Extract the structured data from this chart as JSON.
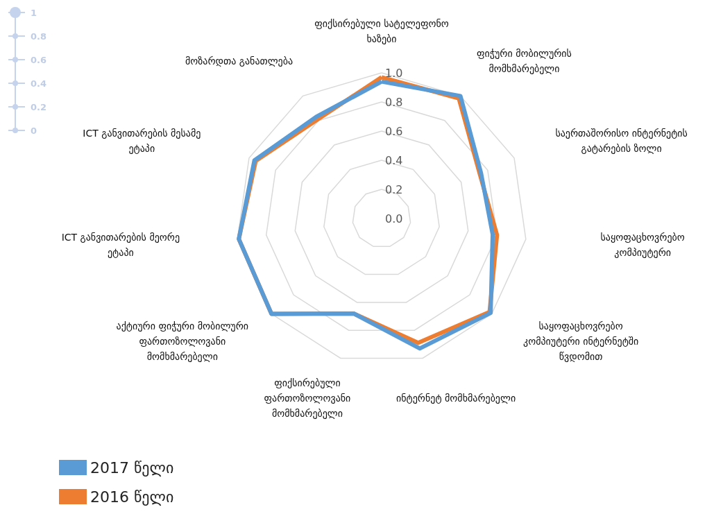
{
  "chart_data": {
    "type": "radar",
    "categories": [
      "ფიქსირებული სატელეფონო ხაზები",
      "ფიჭური მობილურის მომხმარებელი",
      "საერთაშორისო ინტერნეტის გატარების ზოლი",
      "საყოფაცხოვრებო კომპიუტერი",
      "საყოფაცხოვრებო კომპიუტერი ინტერნეტში წვდომით",
      "ინტერნეტ მომხმარებელი",
      "ფიქსირებული ფართოზოლოვანი მომხმარებელი",
      "აქტიური ფიჭური მობილური ფართოზოლოვანი მომხმარებელი",
      "ICT განვითარების მეორე ეტაპი",
      "ICT განვითარების მესამე ეტაპი",
      "მოზარდთა განათლება"
    ],
    "series": [
      {
        "name": "2017 წელი",
        "color": "#5b9bd5",
        "values": [
          0.94,
          1.0,
          0.75,
          0.77,
          0.99,
          0.93,
          0.68,
          1.0,
          0.99,
          0.96,
          0.83
        ]
      },
      {
        "name": "2016 წელი",
        "color": "#ed7d31",
        "values": [
          0.97,
          0.98,
          0.74,
          0.8,
          0.98,
          0.89,
          0.68,
          1.0,
          0.99,
          0.95,
          0.81
        ]
      }
    ],
    "ylim": [
      0,
      1
    ],
    "yticks": [
      {
        "value": 0,
        "label": "0.0"
      },
      {
        "value": 0.2,
        "label": "0.2"
      },
      {
        "value": 0.4,
        "label": "0.4"
      },
      {
        "value": 0.6,
        "label": "0.6"
      },
      {
        "value": 0.8,
        "label": "0.8"
      },
      {
        "value": 1,
        "label": "1.0"
      }
    ],
    "grid": true,
    "legend": "bottom left",
    "marker": "none",
    "annotations": [
      "1",
      "0.8",
      "0.6",
      "0.4",
      "0.2",
      "0"
    ]
  }
}
